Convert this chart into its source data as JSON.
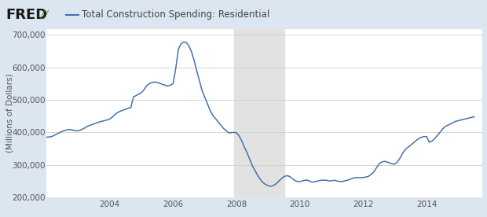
{
  "title": "Total Construction Spending: Residential",
  "ylabel": "(Millions of Dollars)",
  "line_color": "#4472a8",
  "background_color": "#dce6f0",
  "plot_bg_color": "#ffffff",
  "recession_color": "#e2e2e2",
  "recession_start": 2007.917,
  "recession_end": 2009.5,
  "ylim": [
    200000,
    720000
  ],
  "yticks": [
    200000,
    300000,
    400000,
    500000,
    600000,
    700000
  ],
  "xlim_start": 2002.0,
  "xlim_end": 2015.75,
  "xtick_years": [
    2004,
    2006,
    2008,
    2010,
    2012,
    2014
  ],
  "series": {
    "dates": [
      2002.0,
      2002.083,
      2002.167,
      2002.25,
      2002.333,
      2002.417,
      2002.5,
      2002.583,
      2002.667,
      2002.75,
      2002.833,
      2002.917,
      2003.0,
      2003.083,
      2003.167,
      2003.25,
      2003.333,
      2003.417,
      2003.5,
      2003.583,
      2003.667,
      2003.75,
      2003.833,
      2003.917,
      2004.0,
      2004.083,
      2004.167,
      2004.25,
      2004.333,
      2004.417,
      2004.5,
      2004.583,
      2004.667,
      2004.75,
      2004.833,
      2004.917,
      2005.0,
      2005.083,
      2005.167,
      2005.25,
      2005.333,
      2005.417,
      2005.5,
      2005.583,
      2005.667,
      2005.75,
      2005.833,
      2005.917,
      2006.0,
      2006.083,
      2006.167,
      2006.25,
      2006.333,
      2006.417,
      2006.5,
      2006.583,
      2006.667,
      2006.75,
      2006.833,
      2006.917,
      2007.0,
      2007.083,
      2007.167,
      2007.25,
      2007.333,
      2007.417,
      2007.5,
      2007.583,
      2007.667,
      2007.75,
      2007.833,
      2007.917,
      2008.0,
      2008.083,
      2008.167,
      2008.25,
      2008.333,
      2008.417,
      2008.5,
      2008.583,
      2008.667,
      2008.75,
      2008.833,
      2008.917,
      2009.0,
      2009.083,
      2009.167,
      2009.25,
      2009.333,
      2009.417,
      2009.5,
      2009.583,
      2009.667,
      2009.75,
      2009.833,
      2009.917,
      2010.0,
      2010.083,
      2010.167,
      2010.25,
      2010.333,
      2010.417,
      2010.5,
      2010.583,
      2010.667,
      2010.75,
      2010.833,
      2010.917,
      2011.0,
      2011.083,
      2011.167,
      2011.25,
      2011.333,
      2011.417,
      2011.5,
      2011.583,
      2011.667,
      2011.75,
      2011.833,
      2011.917,
      2012.0,
      2012.083,
      2012.167,
      2012.25,
      2012.333,
      2012.417,
      2012.5,
      2012.583,
      2012.667,
      2012.75,
      2012.833,
      2012.917,
      2013.0,
      2013.083,
      2013.167,
      2013.25,
      2013.333,
      2013.417,
      2013.5,
      2013.583,
      2013.667,
      2013.75,
      2013.833,
      2013.917,
      2014.0,
      2014.083,
      2014.167,
      2014.25,
      2014.333,
      2014.417,
      2014.5,
      2014.583,
      2014.667,
      2014.75,
      2014.833,
      2014.917,
      2015.0,
      2015.083,
      2015.167,
      2015.25,
      2015.333,
      2015.417,
      2015.5
    ],
    "values": [
      385000,
      386000,
      387000,
      391000,
      395000,
      399000,
      403000,
      406000,
      408000,
      409000,
      407000,
      405000,
      405000,
      407000,
      411000,
      416000,
      420000,
      423000,
      426000,
      429000,
      432000,
      434000,
      436000,
      438000,
      441000,
      447000,
      455000,
      461000,
      465000,
      468000,
      471000,
      474000,
      476000,
      509000,
      513000,
      518000,
      522000,
      531000,
      543000,
      550000,
      553000,
      555000,
      553000,
      551000,
      547000,
      545000,
      542000,
      545000,
      550000,
      595000,
      655000,
      672000,
      678000,
      676000,
      666000,
      647000,
      620000,
      588000,
      558000,
      528000,
      508000,
      488000,
      468000,
      453000,
      443000,
      433000,
      423000,
      413000,
      406000,
      399000,
      399000,
      400000,
      399000,
      389000,
      374000,
      354000,
      338000,
      318000,
      298000,
      283000,
      268000,
      256000,
      246000,
      240000,
      236000,
      234000,
      237000,
      242000,
      250000,
      258000,
      264000,
      267000,
      265000,
      259000,
      253000,
      249000,
      249000,
      251000,
      253000,
      253000,
      249000,
      247000,
      249000,
      251000,
      253000,
      253000,
      253000,
      251000,
      251000,
      253000,
      251000,
      249000,
      249000,
      251000,
      253000,
      256000,
      259000,
      261000,
      261000,
      261000,
      261000,
      263000,
      265000,
      271000,
      279000,
      291000,
      303000,
      309000,
      311000,
      309000,
      306000,
      303000,
      303000,
      310000,
      322000,
      337000,
      348000,
      355000,
      361000,
      368000,
      375000,
      381000,
      385000,
      387000,
      387000,
      370000,
      373000,
      380000,
      390000,
      400000,
      410000,
      418000,
      422000,
      426000,
      430000,
      434000,
      436000,
      438000,
      440000,
      442000,
      444000,
      446000,
      448000
    ]
  }
}
